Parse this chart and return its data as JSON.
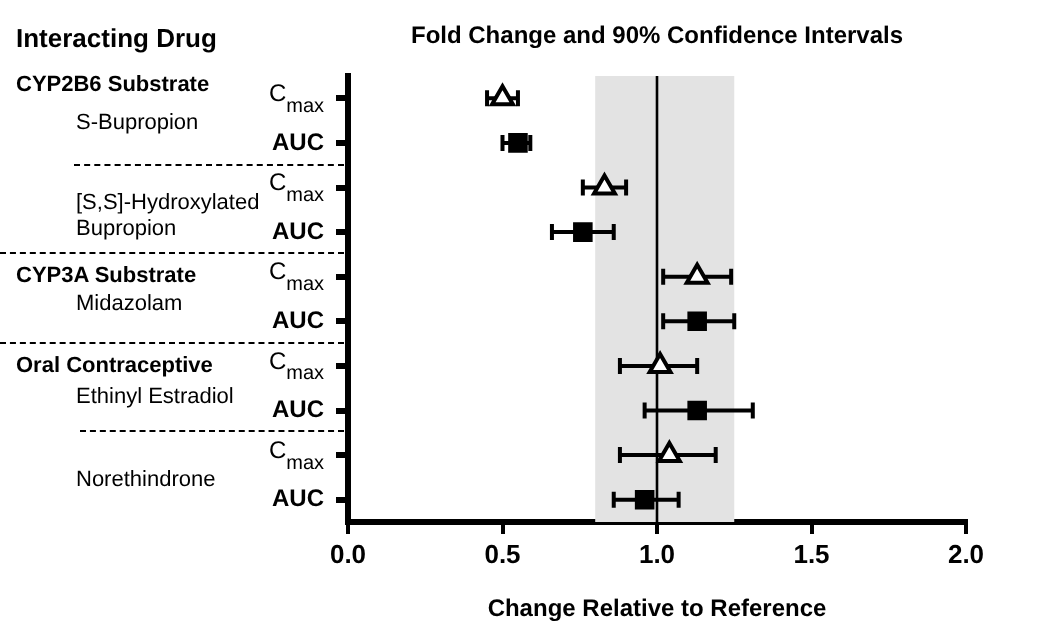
{
  "chart_data": {
    "type": "scatter",
    "orientation": "horizontal",
    "title": "Fold Change and 90% Confidence Intervals",
    "xlabel": "Change Relative to Reference",
    "categories": [
      "C$_{max}$",
      "AUC",
      "C$_{max}$",
      "AUC",
      "C$_{max}$",
      "AUC",
      "C$_{max}$",
      "AUC",
      "C$_{max}$",
      "AUC"
    ],
    "series": [
      {
        "color": "#000000",
        "marker": "triangle",
        "values": [
          0.5,
          null,
          0.83,
          null,
          1.13,
          null,
          1.01,
          null,
          1.04,
          null
        ],
        "errors": [
          [
            0.45,
            0.55
          ],
          null,
          [
            0.76,
            0.9
          ],
          null,
          [
            1.02,
            1.24
          ],
          null,
          [
            0.88,
            1.13
          ],
          null,
          [
            0.88,
            1.19
          ],
          null
        ]
      },
      {
        "color": "#000000",
        "marker": "square",
        "values": [
          null,
          0.55,
          null,
          0.76,
          null,
          1.13,
          null,
          1.13,
          null,
          0.96
        ],
        "errors": [
          null,
          [
            0.5,
            0.59
          ],
          null,
          [
            0.66,
            0.86
          ],
          null,
          [
            1.02,
            1.25
          ],
          null,
          [
            0.96,
            1.31
          ],
          null,
          [
            0.86,
            1.07
          ]
        ]
      }
    ],
    "xlim": [
      0,
      2
    ],
    "xticks": [
      {
        "value": 0,
        "label": "0.0"
      },
      {
        "value": 0.5,
        "label": "0.5"
      },
      {
        "value": 1,
        "label": "1.0"
      },
      {
        "value": 1.5,
        "label": "1.5"
      },
      {
        "value": 2,
        "label": "2.0"
      }
    ],
    "bands": [
      {
        "axis": "x",
        "from": 0.8,
        "to": 1.25,
        "color": "#e3e3e3"
      }
    ],
    "ref_lines": [
      {
        "axis": "x",
        "value": 1,
        "color": "#000000"
      }
    ],
    "annotations": [
      "Interacting Drug",
      "CYP2B6 Substrate",
      "S-Bupropion",
      "[S,S]-Hydroxylated Bupropion",
      "CYP3A Substrate",
      "Midazolam",
      "Oral Contraceptive",
      "Ethinyl Estradiol",
      "Norethindrone"
    ],
    "legend": false,
    "grid": false
  }
}
